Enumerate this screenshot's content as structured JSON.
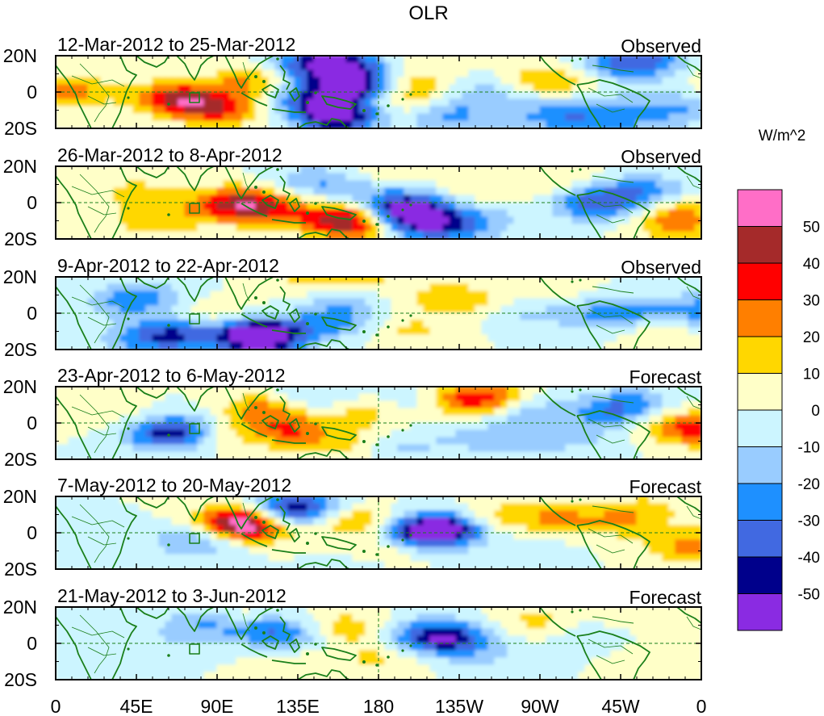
{
  "title": "OLR",
  "colorbar": {
    "units": "W/m^2",
    "levels": [
      "50",
      "40",
      "30",
      "20",
      "10",
      "0",
      "-10",
      "-20",
      "-30",
      "-40",
      "-50"
    ],
    "colors": [
      "#ff6ec7",
      "#a52a2a",
      "#ff0000",
      "#ff7f00",
      "#ffd700",
      "#ffffc8",
      "#ccf5ff",
      "#99ccff",
      "#1e90ff",
      "#4169e1",
      "#00008b",
      "#8a2be2"
    ]
  },
  "axes": {
    "lon_labels": [
      "0",
      "45E",
      "90E",
      "135E",
      "180",
      "135W",
      "90W",
      "45W",
      "0"
    ],
    "lat_labels": [
      "20N",
      "0",
      "20S"
    ]
  },
  "panels": [
    {
      "date_range": "12-Mar-2012 to 25-Mar-2012",
      "status": "Observed"
    },
    {
      "date_range": "26-Mar-2012 to 8-Apr-2012",
      "status": "Observed"
    },
    {
      "date_range": "9-Apr-2012 to 22-Apr-2012",
      "status": "Observed"
    },
    {
      "date_range": "23-Apr-2012 to 6-May-2012",
      "status": "Forecast"
    },
    {
      "date_range": "7-May-2012 to 20-May-2012",
      "status": "Forecast"
    },
    {
      "date_range": "21-May-2012 to 3-Jun-2012",
      "status": "Forecast"
    }
  ],
  "anomalies": [
    [
      [
        20,
        0,
        24
      ],
      [
        150,
        -4,
        42
      ],
      [
        205,
        -10,
        32
      ],
      [
        350,
        -14,
        -52
      ],
      [
        315,
        -4,
        -32
      ],
      [
        365,
        0,
        -28
      ],
      [
        338,
        16,
        -45
      ],
      [
        372,
        8,
        -38
      ],
      [
        440,
        -5,
        22
      ],
      [
        440,
        8,
        14
      ],
      [
        480,
        -12,
        -25
      ],
      [
        540,
        0,
        -15
      ],
      [
        600,
        6,
        18
      ],
      [
        700,
        14,
        -30
      ],
      [
        742,
        18,
        -20
      ],
      [
        775,
        -10,
        -20
      ],
      [
        860,
        6,
        30
      ],
      [
        310,
        15,
        -12
      ],
      [
        240,
        5,
        22
      ],
      [
        620,
        -12,
        -12
      ],
      [
        670,
        6,
        12
      ],
      [
        700,
        -2,
        -10
      ],
      [
        640,
        -15,
        -15
      ],
      [
        560,
        -15,
        -8
      ],
      [
        700,
        -16,
        -18
      ]
    ],
    [
      [
        100,
        5,
        14
      ],
      [
        220,
        0,
        32
      ],
      [
        260,
        -4,
        30
      ],
      [
        350,
        -10,
        38
      ],
      [
        390,
        -11,
        30
      ],
      [
        420,
        -8,
        -38
      ],
      [
        440,
        -2,
        -35
      ],
      [
        470,
        -12,
        -40
      ],
      [
        520,
        6,
        10
      ],
      [
        560,
        -5,
        -12
      ],
      [
        600,
        -3,
        12
      ],
      [
        650,
        -2,
        -28
      ],
      [
        690,
        2,
        -20
      ],
      [
        735,
        6,
        -22
      ],
      [
        780,
        -5,
        22
      ],
      [
        770,
        -14,
        18
      ],
      [
        840,
        -4,
        -14
      ],
      [
        320,
        12,
        -18
      ],
      [
        380,
        8,
        -15
      ],
      [
        160,
        -8,
        12
      ],
      [
        100,
        -12,
        10
      ],
      [
        400,
        15,
        12
      ],
      [
        620,
        12,
        10
      ],
      [
        520,
        -14,
        -10
      ]
    ],
    [
      [
        90,
        6,
        -22
      ],
      [
        150,
        -12,
        -38
      ],
      [
        200,
        -3,
        12
      ],
      [
        255,
        -14,
        -30
      ],
      [
        250,
        -12,
        -50
      ],
      [
        340,
        -6,
        -22
      ],
      [
        360,
        5,
        -15
      ],
      [
        480,
        8,
        14
      ],
      [
        520,
        5,
        10
      ],
      [
        580,
        0,
        -12
      ],
      [
        720,
        0,
        -25
      ],
      [
        760,
        -8,
        18
      ],
      [
        800,
        2,
        -20
      ],
      [
        380,
        18,
        14
      ],
      [
        300,
        18,
        10
      ],
      [
        440,
        -10,
        12
      ],
      [
        120,
        12,
        -10
      ],
      [
        830,
        -5,
        -22
      ],
      [
        100,
        -15,
        -15
      ],
      [
        660,
        0,
        -15
      ],
      [
        620,
        10,
        8
      ]
    ],
    [
      [
        130,
        -6,
        -32
      ],
      [
        160,
        -4,
        -28
      ],
      [
        200,
        -5,
        15
      ],
      [
        260,
        8,
        25
      ],
      [
        290,
        -5,
        28
      ],
      [
        310,
        14,
        -15
      ],
      [
        380,
        4,
        14
      ],
      [
        500,
        12,
        28
      ],
      [
        540,
        14,
        25
      ],
      [
        520,
        -8,
        -12
      ],
      [
        580,
        8,
        -15
      ],
      [
        600,
        -3,
        -12
      ],
      [
        690,
        6,
        -25
      ],
      [
        720,
        12,
        -14
      ],
      [
        770,
        -2,
        25
      ],
      [
        820,
        -6,
        22
      ],
      [
        100,
        0,
        10
      ],
      [
        430,
        -14,
        -12
      ],
      [
        460,
        12,
        -14
      ],
      [
        360,
        -12,
        12
      ],
      [
        660,
        -10,
        -8
      ],
      [
        580,
        -14,
        -8
      ]
    ],
    [
      [
        230,
        8,
        34
      ],
      [
        235,
        2,
        45
      ],
      [
        275,
        12,
        -30
      ],
      [
        310,
        14,
        -28
      ],
      [
        370,
        6,
        22
      ],
      [
        460,
        0,
        -35
      ],
      [
        480,
        2,
        -45
      ],
      [
        540,
        8,
        15
      ],
      [
        620,
        8,
        20
      ],
      [
        700,
        6,
        18
      ],
      [
        200,
        -4,
        -20
      ],
      [
        400,
        -12,
        12
      ],
      [
        780,
        -8,
        20
      ],
      [
        840,
        -5,
        14
      ],
      [
        150,
        -5,
        -10
      ],
      [
        380,
        -18,
        -10
      ],
      [
        580,
        -10,
        -8
      ],
      [
        740,
        14,
        10
      ]
    ],
    [
      [
        190,
        12,
        -25
      ],
      [
        220,
        14,
        18
      ],
      [
        250,
        8,
        -20
      ],
      [
        290,
        4,
        -20
      ],
      [
        360,
        8,
        18
      ],
      [
        460,
        4,
        -25
      ],
      [
        490,
        2,
        -35
      ],
      [
        600,
        12,
        14
      ],
      [
        660,
        6,
        -10
      ],
      [
        540,
        -8,
        -8
      ],
      [
        300,
        -12,
        8
      ],
      [
        760,
        -10,
        10
      ],
      [
        400,
        -8,
        12
      ],
      [
        150,
        2,
        -8
      ],
      [
        700,
        14,
        8
      ]
    ]
  ]
}
